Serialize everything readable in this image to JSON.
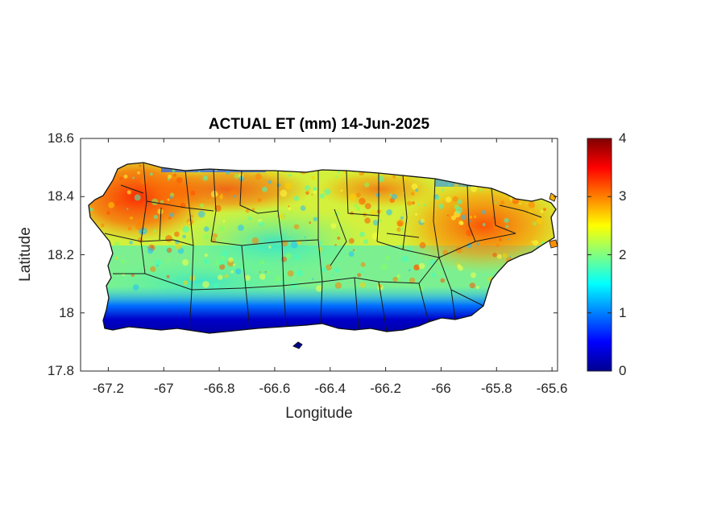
{
  "title": "ACTUAL ET (mm) 14-Jun-2025",
  "map": {
    "xlabel": "Longitude",
    "ylabel": "Latitude",
    "xlim": [
      -67.3,
      -65.58
    ],
    "ylim": [
      17.8,
      18.6
    ],
    "xticks": [
      "-67.2",
      "-67",
      "-66.8",
      "-66.6",
      "-66.4",
      "-66.2",
      "-66",
      "-65.8",
      "-65.6"
    ],
    "xtick_values": [
      -67.2,
      -67.0,
      -66.8,
      -66.6,
      -66.4,
      -66.2,
      -66.0,
      -65.8,
      -65.6
    ],
    "yticks": [
      "18.6",
      "18.4",
      "18.2",
      "18",
      "17.8"
    ],
    "ytick_values": [
      18.6,
      18.4,
      18.2,
      18.0,
      17.8
    ],
    "region": "Puerto Rico (municipality boundaries)",
    "field_summary": {
      "west_northwest": 3.4,
      "north_coast": 2.8,
      "central_interior": 2.0,
      "east": 3.0,
      "south_coast": 0.2
    }
  },
  "colorbar": {
    "colormap": "jet",
    "min": 0,
    "max": 4,
    "ticks": [
      "4",
      "3",
      "2",
      "1",
      "0"
    ],
    "tick_values": [
      4,
      3,
      2,
      1,
      0
    ],
    "colors": [
      "#00008f",
      "#0000ff",
      "#0080ff",
      "#00ffff",
      "#80ff80",
      "#ffff00",
      "#ff8000",
      "#ff0000",
      "#800000"
    ]
  }
}
